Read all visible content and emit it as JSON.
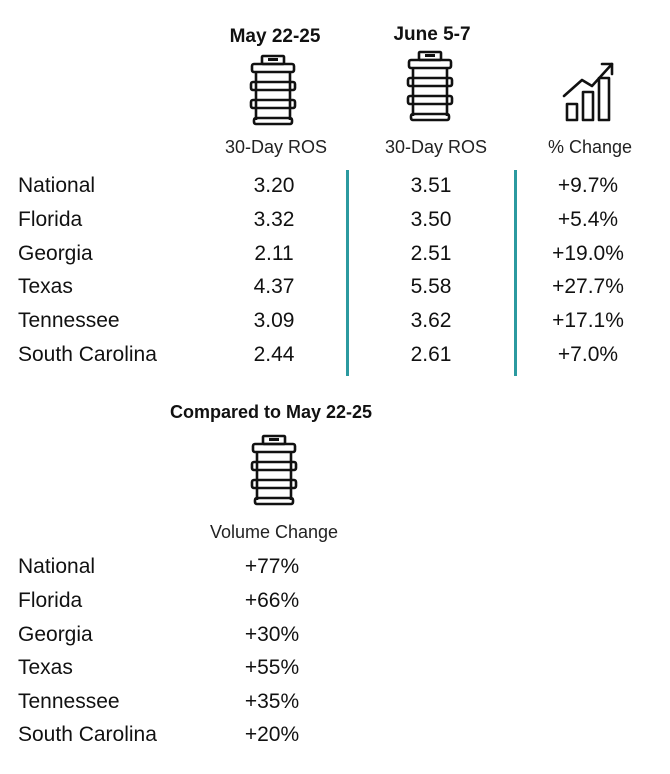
{
  "table1": {
    "columns": [
      {
        "period": "May 22-25",
        "metric": "30-Day ROS",
        "icon": "keg-icon"
      },
      {
        "period": "June 5-7",
        "metric": "30-Day ROS",
        "icon": "keg-icon"
      },
      {
        "period": "",
        "metric": "% Change",
        "icon": "growth-chart-icon"
      }
    ],
    "rows": [
      {
        "state": "National",
        "may": "3.20",
        "june": "3.51",
        "change": "+9.7%"
      },
      {
        "state": "Florida",
        "may": "3.32",
        "june": "3.50",
        "change": "+5.4%"
      },
      {
        "state": "Georgia",
        "may": "2.11",
        "june": "2.51",
        "change": "+19.0%"
      },
      {
        "state": "Texas",
        "may": "4.37",
        "june": "5.58",
        "change": "+27.7%"
      },
      {
        "state": "Tennessee",
        "may": "3.09",
        "june": "3.62",
        "change": "+17.1%"
      },
      {
        "state": "South Carolina",
        "may": "2.44",
        "june": "2.61",
        "change": "+7.0%"
      }
    ]
  },
  "table2": {
    "title": "Compared to May 22-25",
    "metric": "Volume Change",
    "icon": "keg-icon",
    "rows": [
      {
        "state": "National",
        "change": "+77%"
      },
      {
        "state": "Florida",
        "change": "+66%"
      },
      {
        "state": "Georgia",
        "change": "+30%"
      },
      {
        "state": "Texas",
        "change": "+55%"
      },
      {
        "state": "Tennessee",
        "change": "+35%"
      },
      {
        "state": "South Carolina",
        "change": "+20%"
      }
    ]
  },
  "colors": {
    "divider": "#2b9aa0",
    "text": "#111111"
  },
  "chart_data": {
    "type": "table",
    "tables": [
      {
        "columns": [
          "",
          "May 22-25 30-Day ROS",
          "June 5-7 30-Day ROS",
          "% Change"
        ],
        "rows": [
          [
            "National",
            3.2,
            3.51,
            9.7
          ],
          [
            "Florida",
            3.32,
            3.5,
            5.4
          ],
          [
            "Georgia",
            2.11,
            2.51,
            19.0
          ],
          [
            "Texas",
            4.37,
            5.58,
            27.7
          ],
          [
            "Tennessee",
            3.09,
            3.62,
            17.1
          ],
          [
            "South Carolina",
            2.44,
            2.61,
            7.0
          ]
        ]
      },
      {
        "title": "Compared to May 22-25",
        "columns": [
          "",
          "Volume Change"
        ],
        "rows": [
          [
            "National",
            77
          ],
          [
            "Florida",
            66
          ],
          [
            "Georgia",
            30
          ],
          [
            "Texas",
            55
          ],
          [
            "Tennessee",
            35
          ],
          [
            "South Carolina",
            20
          ]
        ]
      }
    ]
  }
}
